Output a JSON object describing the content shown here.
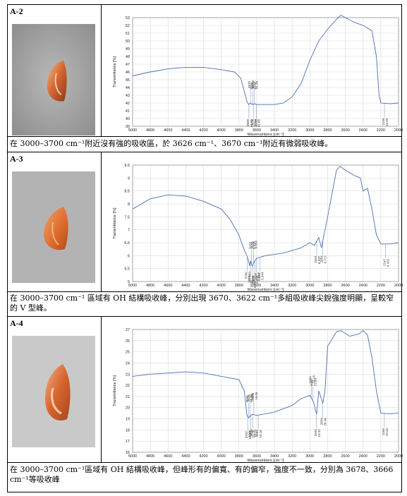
{
  "samples": [
    {
      "id": "A-2",
      "caption": "在 3000–3700 cm⁻¹附近沒有強的吸收區，於 3626 cm⁻¹、3670 cm⁻¹附近有微弱吸收峰。",
      "spectrum": {
        "ylabel": "Transmittance [%]",
        "xlabel": "Wavenumbers [cm⁻¹]",
        "xlim": [
          5000,
          2000
        ],
        "ylim": [
          39,
          53
        ],
        "yticks": [
          39,
          40,
          41,
          42,
          43,
          44,
          45,
          46,
          47,
          48,
          49,
          50,
          51,
          52,
          53
        ],
        "xticks": [
          5000,
          4800,
          4600,
          4400,
          4200,
          4000,
          3800,
          3600,
          3400,
          3200,
          3000,
          2800,
          2600,
          2400,
          2200,
          2000
        ],
        "points": [
          [
            5000,
            45.5
          ],
          [
            4800,
            46.0
          ],
          [
            4600,
            46.4
          ],
          [
            4400,
            46.6
          ],
          [
            4200,
            46.6
          ],
          [
            4000,
            46.3
          ],
          [
            3850,
            46.0
          ],
          [
            3780,
            45.2
          ],
          [
            3740,
            43.5
          ],
          [
            3710,
            42.2
          ],
          [
            3690,
            41.8
          ],
          [
            3670,
            42.0
          ],
          [
            3650,
            41.8
          ],
          [
            3626,
            41.9
          ],
          [
            3600,
            41.8
          ],
          [
            3400,
            41.8
          ],
          [
            3300,
            42.0
          ],
          [
            3200,
            42.8
          ],
          [
            3100,
            44.5
          ],
          [
            3000,
            47.5
          ],
          [
            2900,
            50.0
          ],
          [
            2800,
            51.5
          ],
          [
            2700,
            52.8
          ],
          [
            2650,
            53.3
          ],
          [
            2600,
            53.0
          ],
          [
            2500,
            52.4
          ],
          [
            2400,
            52.0
          ],
          [
            2300,
            51.3
          ],
          [
            2250,
            48.0
          ],
          [
            2220,
            43.0
          ],
          [
            2200,
            42.0
          ],
          [
            2100,
            41.9
          ],
          [
            2000,
            42.0
          ]
        ],
        "annotations": [
          {
            "wn": 3604,
            "val": "41.86",
            "side": "below"
          },
          {
            "wn": 3688,
            "val": "41.65",
            "side": "below"
          },
          {
            "wn": 3636,
            "val": "41.82",
            "side": "below"
          },
          {
            "wn": 3670,
            "val": "42.02",
            "side": "above"
          },
          {
            "wn": 3646,
            "val": "42.02",
            "side": "above"
          },
          {
            "wn": 3626,
            "val": "41.94",
            "side": "above"
          },
          {
            "wn": 2159,
            "val": "42.03",
            "side": "below"
          }
        ]
      }
    },
    {
      "id": "A-3",
      "caption": "在 3000–3700 cm⁻¹ 區域有 OH 結構吸收峰，分別出現 3670、3622 cm⁻¹多組吸收峰尖銳強度明顯，呈較窄的 V 型峰。",
      "spectrum": {
        "ylabel": "Transmittance [%]",
        "xlabel": "Wavenumbers [cm⁻¹]",
        "xlim": [
          5000,
          2000
        ],
        "ylim": [
          5,
          9.5
        ],
        "yticks": [
          5,
          5.5,
          6,
          6.5,
          7,
          7.5,
          8,
          8.5,
          9,
          9.5
        ],
        "xticks": [
          5000,
          4800,
          4600,
          4400,
          4200,
          4000,
          3800,
          3600,
          3400,
          3200,
          3000,
          2800,
          2600,
          2400,
          2200,
          2000
        ],
        "points": [
          [
            5000,
            7.8
          ],
          [
            4800,
            8.2
          ],
          [
            4600,
            8.35
          ],
          [
            4400,
            8.3
          ],
          [
            4200,
            8.1
          ],
          [
            4000,
            7.8
          ],
          [
            3900,
            7.4
          ],
          [
            3800,
            6.8
          ],
          [
            3750,
            6.3
          ],
          [
            3700,
            5.9
          ],
          [
            3680,
            5.6
          ],
          [
            3670,
            5.8
          ],
          [
            3650,
            5.6
          ],
          [
            3622,
            5.8
          ],
          [
            3600,
            5.9
          ],
          [
            3500,
            6.0
          ],
          [
            3300,
            6.1
          ],
          [
            3100,
            6.3
          ],
          [
            3000,
            6.5
          ],
          [
            2950,
            6.4
          ],
          [
            2900,
            6.7
          ],
          [
            2870,
            6.3
          ],
          [
            2800,
            7.5
          ],
          [
            2700,
            9.3
          ],
          [
            2660,
            9.45
          ],
          [
            2600,
            9.3
          ],
          [
            2500,
            9.1
          ],
          [
            2430,
            9.0
          ],
          [
            2400,
            8.5
          ],
          [
            2350,
            8.6
          ],
          [
            2300,
            7.8
          ],
          [
            2250,
            6.8
          ],
          [
            2200,
            6.45
          ],
          [
            2100,
            6.45
          ],
          [
            2000,
            6.5
          ]
        ],
        "annotations": [
          {
            "wn": 3706,
            "val": "5.883",
            "side": "below"
          },
          {
            "wn": 3670,
            "val": "5.720",
            "side": "below"
          },
          {
            "wn": 3646,
            "val": "5.787",
            "side": "below"
          },
          {
            "wn": 3622,
            "val": "5.839",
            "side": "below"
          },
          {
            "wn": 3600,
            "val": "5.847",
            "side": "below"
          },
          {
            "wn": 3562,
            "val": "5.944",
            "side": "below"
          },
          {
            "wn": 3658,
            "val": "6.026",
            "side": "above"
          },
          {
            "wn": 3636,
            "val": "6.654",
            "side": "above"
          },
          {
            "wn": 2923,
            "val": "6.337",
            "side": "below"
          },
          {
            "wn": 2854,
            "val": "6.717",
            "side": "below"
          },
          {
            "wn": 2147,
            "val": "6.431",
            "side": "below"
          }
        ]
      }
    },
    {
      "id": "A-4",
      "caption": "在 3000–3700 cm⁻¹區域有 OH 結構吸收峰，但峰形有的偏寬、有的偏窄，強度不一致，分別為 3678、3666 cm⁻¹等吸收峰",
      "spectrum": {
        "ylabel": "Transmittance [%]",
        "xlabel": "Wavenumbers [cm⁻¹]",
        "xlim": [
          5000,
          2000
        ],
        "ylim": [
          16,
          27
        ],
        "yticks": [
          16,
          17,
          18,
          19,
          20,
          21,
          22,
          23,
          24,
          25,
          26,
          27
        ],
        "xticks": [
          5000,
          4800,
          4600,
          4400,
          4200,
          4000,
          3800,
          3600,
          3400,
          3200,
          3000,
          2800,
          2600,
          2400,
          2200,
          2000
        ],
        "points": [
          [
            5000,
            22.8
          ],
          [
            4800,
            23.0
          ],
          [
            4600,
            23.1
          ],
          [
            4400,
            23.2
          ],
          [
            4200,
            23.1
          ],
          [
            4000,
            22.8
          ],
          [
            3800,
            22.5
          ],
          [
            3740,
            21.5
          ],
          [
            3710,
            19.3
          ],
          [
            3690,
            19.1
          ],
          [
            3666,
            19.3
          ],
          [
            3650,
            19.4
          ],
          [
            3600,
            19.3
          ],
          [
            3400,
            19.6
          ],
          [
            3200,
            20.2
          ],
          [
            3100,
            20.8
          ],
          [
            3000,
            21.1
          ],
          [
            2960,
            20.5
          ],
          [
            2925,
            19.4
          ],
          [
            2900,
            21.5
          ],
          [
            2854,
            20.4
          ],
          [
            2830,
            21.5
          ],
          [
            2800,
            25.5
          ],
          [
            2700,
            26.8
          ],
          [
            2650,
            26.9
          ],
          [
            2550,
            26.4
          ],
          [
            2450,
            26.6
          ],
          [
            2400,
            26.9
          ],
          [
            2350,
            26.5
          ],
          [
            2300,
            24.5
          ],
          [
            2250,
            21.5
          ],
          [
            2200,
            19.5
          ],
          [
            2100,
            19.45
          ],
          [
            2000,
            19.5
          ]
        ],
        "annotations": [
          {
            "wn": 3702,
            "val": "19.17",
            "side": "below"
          },
          {
            "wn": 3666,
            "val": "19.29",
            "side": "below"
          },
          {
            "wn": 3646,
            "val": "19.21",
            "side": "below"
          },
          {
            "wn": 3583,
            "val": "19.18",
            "side": "below"
          },
          {
            "wn": 3694,
            "val": "19.20",
            "side": "above"
          },
          {
            "wn": 3678,
            "val": "19.48",
            "side": "above"
          },
          {
            "wn": 3632,
            "val": "19.05",
            "side": "above"
          },
          {
            "wn": 2984,
            "val": "21.15",
            "side": "above"
          },
          {
            "wn": 2966,
            "val": "21.53",
            "side": "above"
          },
          {
            "wn": 2925,
            "val": "19.37",
            "side": "below"
          },
          {
            "wn": 2854,
            "val": "20.44",
            "side": "below"
          },
          {
            "wn": 2160,
            "val": "19.44",
            "side": "below"
          }
        ]
      }
    }
  ]
}
